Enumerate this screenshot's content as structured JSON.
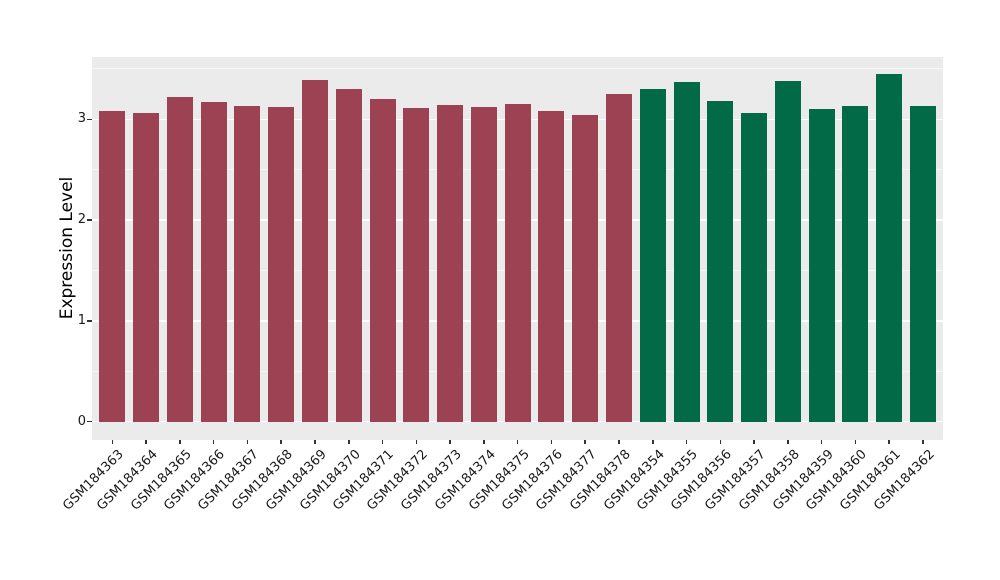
{
  "figure": {
    "ylabel": "Expression Level"
  },
  "chart_data": {
    "type": "bar",
    "title": "",
    "xlabel": "",
    "ylabel": "Expression Level",
    "ylim": [
      -0.18,
      3.62
    ],
    "yticks": [
      0,
      1,
      2,
      3
    ],
    "grid": "major and minor horizontal white gridlines on gray panel",
    "panel_background": "#EBEBEB",
    "gridline_color": "#FFFFFF",
    "legend_position": "none",
    "x_tick_rotation": 45,
    "palette": {
      "maroon": "#9D4252",
      "green": "#036A47"
    },
    "bars": [
      {
        "label": "GSM184363",
        "value": 3.08,
        "group": "maroon"
      },
      {
        "label": "GSM184364",
        "value": 3.06,
        "group": "maroon"
      },
      {
        "label": "GSM184365",
        "value": 3.22,
        "group": "maroon"
      },
      {
        "label": "GSM184366",
        "value": 3.17,
        "group": "maroon"
      },
      {
        "label": "GSM184367",
        "value": 3.13,
        "group": "maroon"
      },
      {
        "label": "GSM184368",
        "value": 3.12,
        "group": "maroon"
      },
      {
        "label": "GSM184369",
        "value": 3.39,
        "group": "maroon"
      },
      {
        "label": "GSM184370",
        "value": 3.3,
        "group": "maroon"
      },
      {
        "label": "GSM184371",
        "value": 3.2,
        "group": "maroon"
      },
      {
        "label": "GSM184372",
        "value": 3.11,
        "group": "maroon"
      },
      {
        "label": "GSM184373",
        "value": 3.14,
        "group": "maroon"
      },
      {
        "label": "GSM184374",
        "value": 3.12,
        "group": "maroon"
      },
      {
        "label": "GSM184375",
        "value": 3.15,
        "group": "maroon"
      },
      {
        "label": "GSM184376",
        "value": 3.08,
        "group": "maroon"
      },
      {
        "label": "GSM184377",
        "value": 3.04,
        "group": "maroon"
      },
      {
        "label": "GSM184378",
        "value": 3.25,
        "group": "maroon"
      },
      {
        "label": "GSM184354",
        "value": 3.3,
        "group": "green"
      },
      {
        "label": "GSM184355",
        "value": 3.37,
        "group": "green"
      },
      {
        "label": "GSM184356",
        "value": 3.18,
        "group": "green"
      },
      {
        "label": "GSM184357",
        "value": 3.06,
        "group": "green"
      },
      {
        "label": "GSM184358",
        "value": 3.38,
        "group": "green"
      },
      {
        "label": "GSM184359",
        "value": 3.1,
        "group": "green"
      },
      {
        "label": "GSM184360",
        "value": 3.13,
        "group": "green"
      },
      {
        "label": "GSM184361",
        "value": 3.45,
        "group": "green"
      },
      {
        "label": "GSM184362",
        "value": 3.13,
        "group": "green"
      }
    ]
  }
}
